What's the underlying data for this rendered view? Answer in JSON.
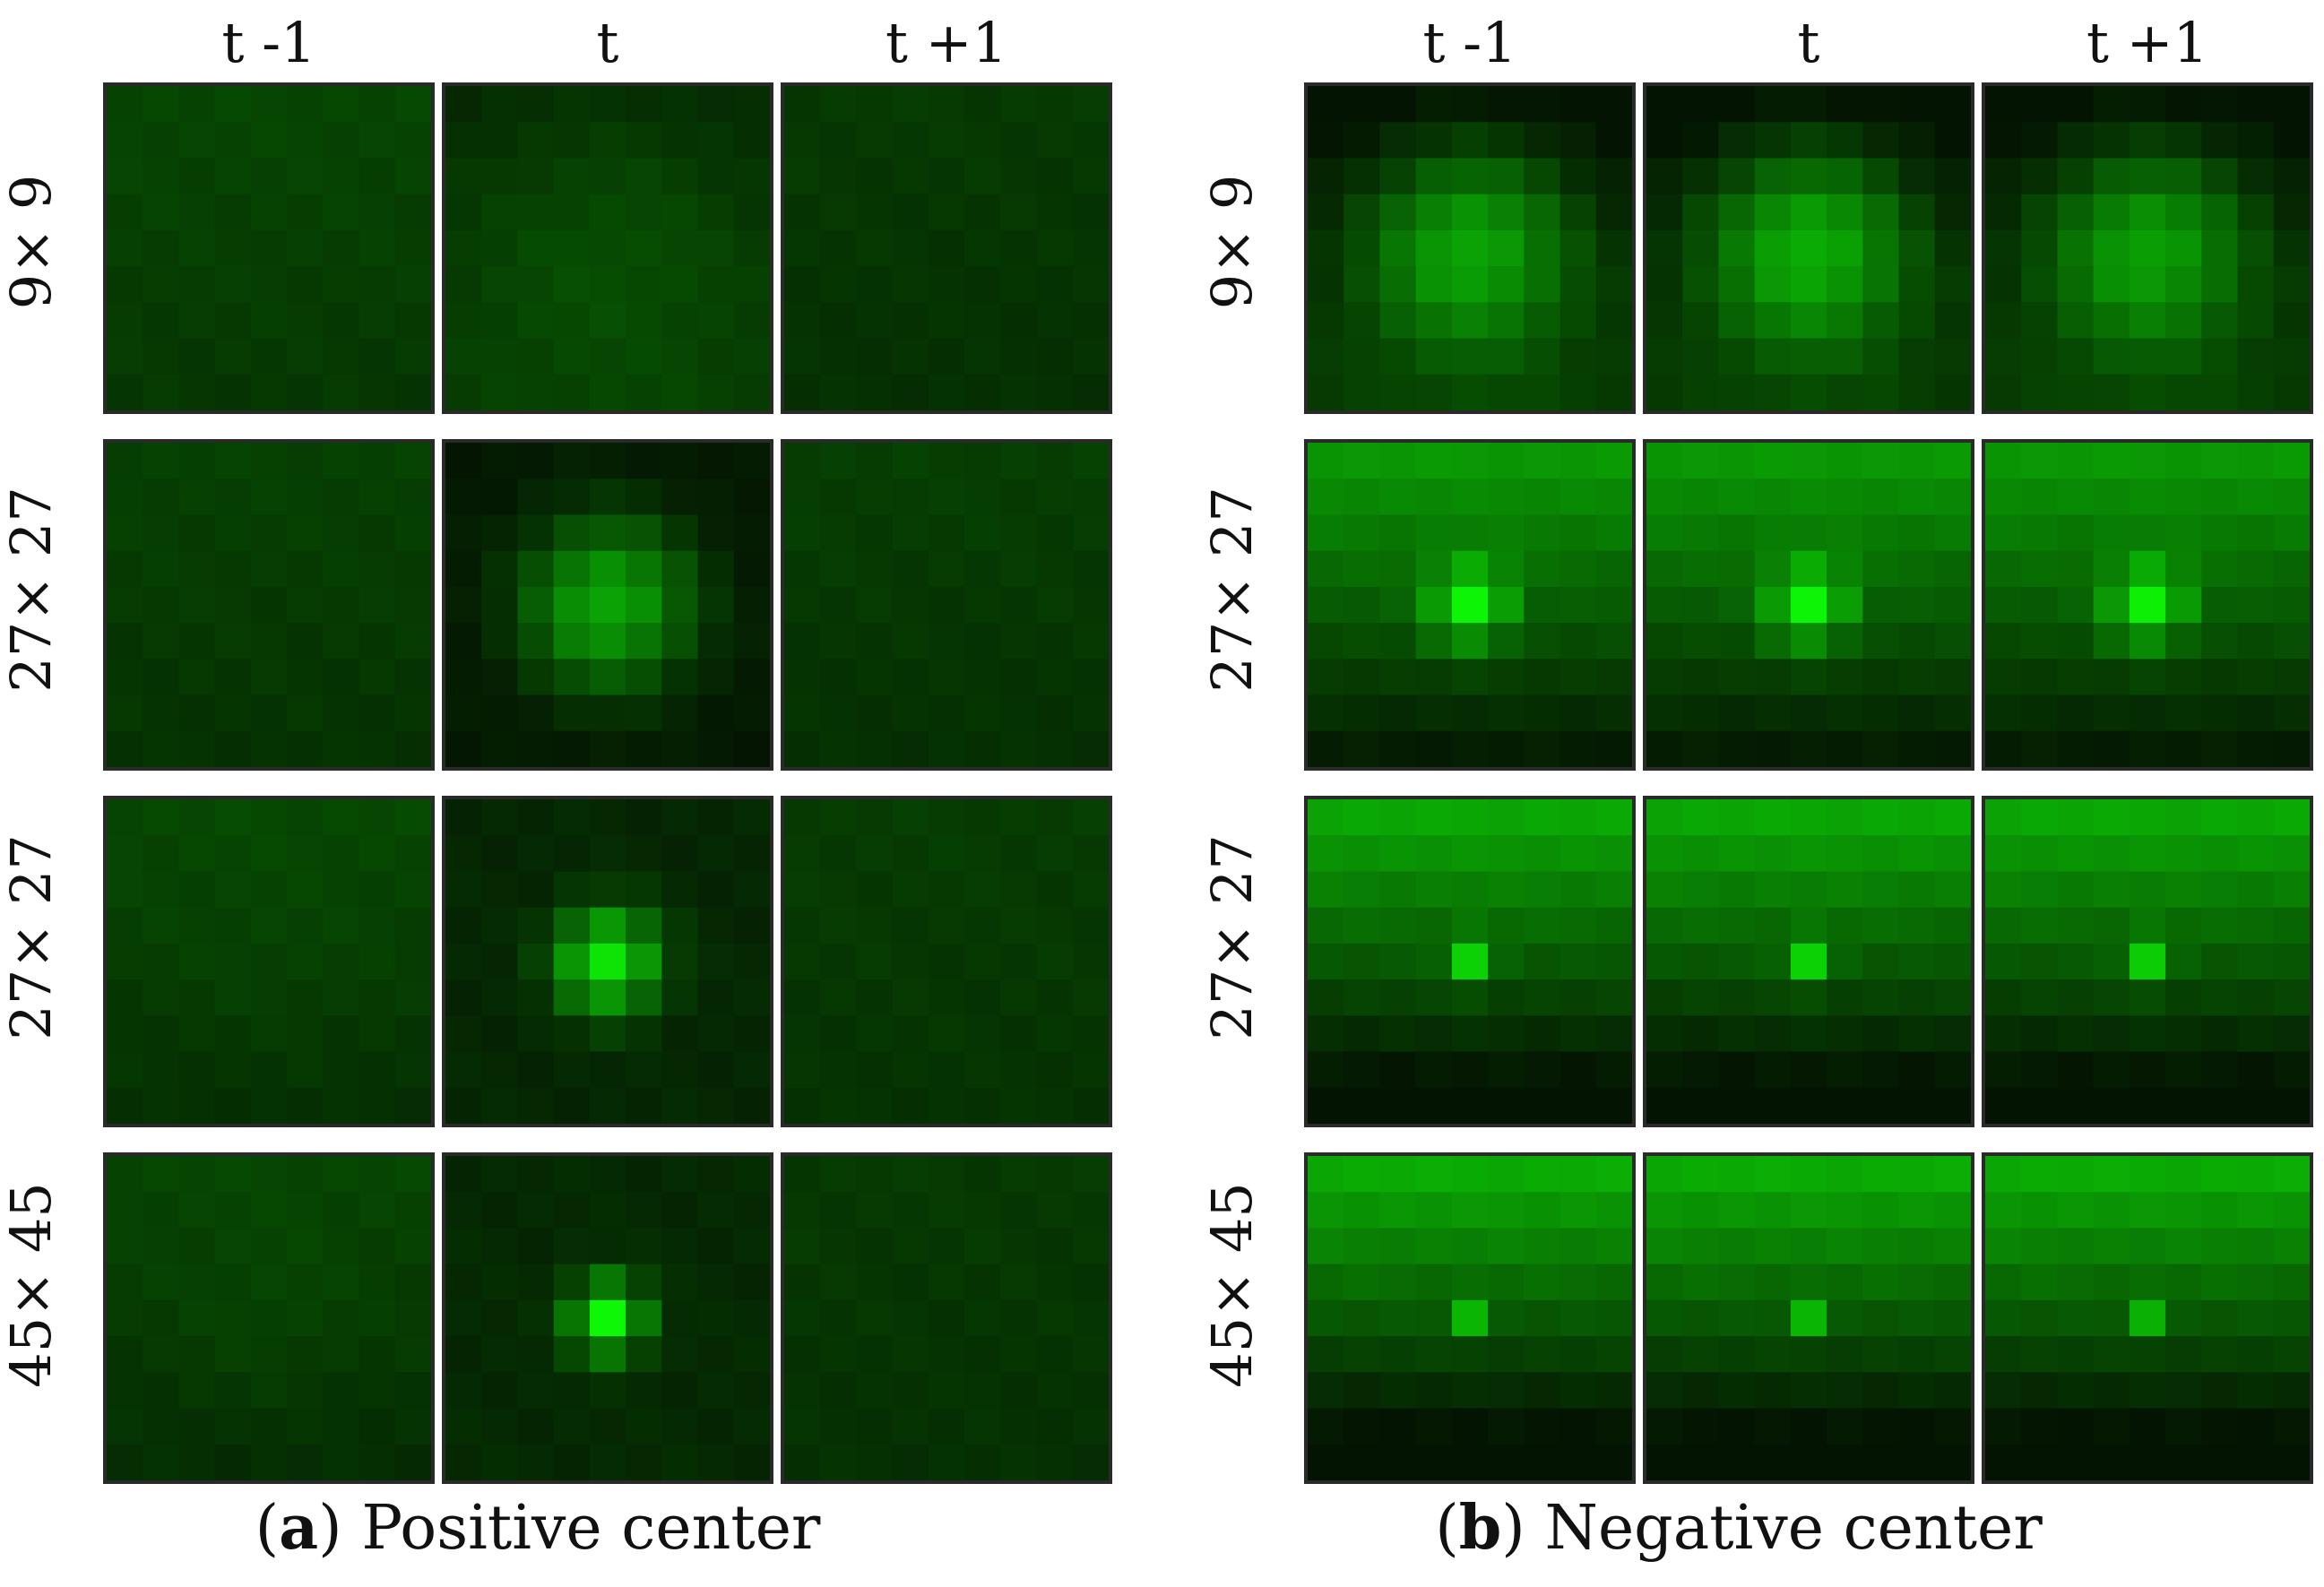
{
  "figure": {
    "col_headers": [
      "t -1",
      "t",
      "t +1"
    ],
    "row_labels": [
      "9× 9",
      "27× 27",
      "27× 27",
      "45× 45"
    ],
    "panel_a": {
      "letter": "a",
      "caption": "Positive center",
      "rows": [
        [
          {
            "base": 0.18,
            "center": 0.18,
            "sigma": 3.0,
            "tilt": 0.03
          },
          {
            "base": 0.12,
            "center": 0.24,
            "sigma": 3.0,
            "tilt": -0.04
          },
          {
            "base": 0.14,
            "center": 0.14,
            "sigma": 3.0,
            "tilt": 0.02
          }
        ],
        [
          {
            "base": 0.16,
            "center": 0.16,
            "sigma": 2.0,
            "tilt": 0.03
          },
          {
            "base": 0.02,
            "center": 0.62,
            "sigma": 1.6,
            "tilt": 0.0
          },
          {
            "base": 0.15,
            "center": 0.15,
            "sigma": 2.0,
            "tilt": 0.03
          }
        ],
        [
          {
            "base": 0.17,
            "center": 0.19,
            "sigma": 1.8,
            "tilt": 0.05
          },
          {
            "base": 0.08,
            "center": 0.9,
            "sigma": 0.95,
            "tilt": 0.0
          },
          {
            "base": 0.15,
            "center": 0.15,
            "sigma": 2.0,
            "tilt": 0.02
          }
        ],
        [
          {
            "base": 0.16,
            "center": 0.2,
            "sigma": 1.6,
            "tilt": 0.05
          },
          {
            "base": 0.09,
            "center": 0.98,
            "sigma": 0.7,
            "tilt": 0.0
          },
          {
            "base": 0.14,
            "center": 0.14,
            "sigma": 2.0,
            "tilt": 0.02
          }
        ]
      ]
    },
    "panel_b": {
      "letter": "b",
      "caption": "Negative center",
      "rows": [
        [
          {
            "base": 0.06,
            "center": 0.62,
            "sigma": 2.0,
            "tilt": -0.1
          },
          {
            "base": 0.05,
            "center": 0.66,
            "sigma": 2.0,
            "tilt": -0.1
          },
          {
            "base": 0.06,
            "center": 0.6,
            "sigma": 2.0,
            "tilt": -0.1
          }
        ],
        [
          {
            "base": 0.3,
            "center": 0.97,
            "sigma": 0.75,
            "tilt": 0.26
          },
          {
            "base": 0.3,
            "center": 0.97,
            "sigma": 0.75,
            "tilt": 0.26
          },
          {
            "base": 0.3,
            "center": 0.95,
            "sigma": 0.75,
            "tilt": 0.26
          }
        ],
        [
          {
            "base": 0.28,
            "center": 0.82,
            "sigma": 0.45,
            "tilt": 0.34
          },
          {
            "base": 0.28,
            "center": 0.82,
            "sigma": 0.45,
            "tilt": 0.34
          },
          {
            "base": 0.28,
            "center": 0.8,
            "sigma": 0.45,
            "tilt": 0.34
          }
        ],
        [
          {
            "base": 0.28,
            "center": 0.7,
            "sigma": 0.35,
            "tilt": 0.36
          },
          {
            "base": 0.28,
            "center": 0.7,
            "sigma": 0.35,
            "tilt": 0.36
          },
          {
            "base": 0.28,
            "center": 0.68,
            "sigma": 0.35,
            "tilt": 0.36
          }
        ]
      ]
    },
    "colors": {
      "max_green": "#00ff00",
      "tile_border": "#2a2a2a",
      "background": "#ffffff"
    }
  }
}
